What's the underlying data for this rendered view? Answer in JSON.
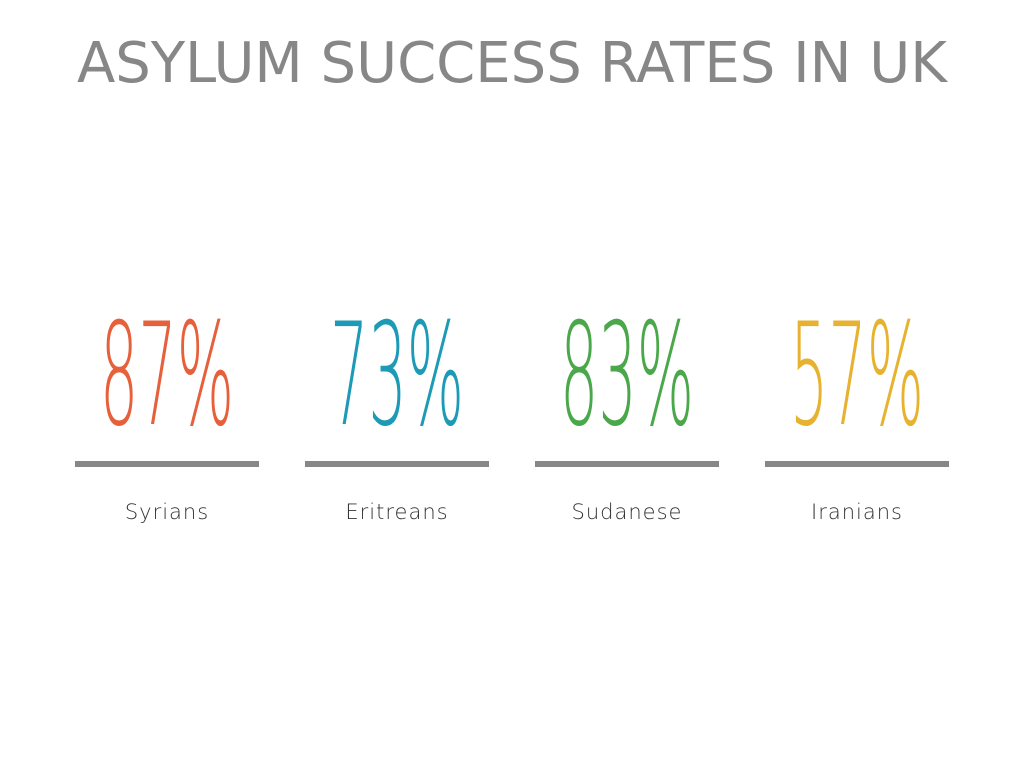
{
  "chart_data": {
    "type": "stat",
    "title": "ASYLUM SUCCESS RATES IN UK",
    "categories": [
      "Syrians",
      "Eritreans",
      "Sudanese",
      "Iranians"
    ],
    "values": [
      87,
      73,
      83,
      57
    ],
    "value_labels": [
      "87%",
      "73%",
      "83%",
      "57%"
    ],
    "colors": [
      "#e5603b",
      "#1d9bb6",
      "#4aa84b",
      "#e7b22f"
    ]
  }
}
